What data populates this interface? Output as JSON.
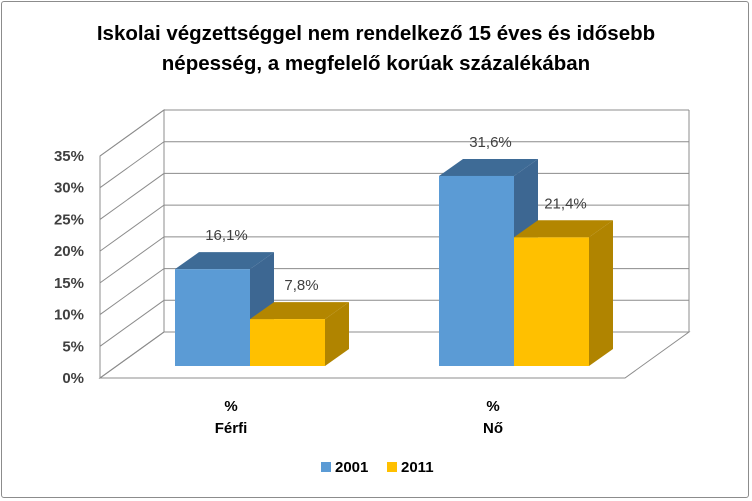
{
  "chart_data": {
    "type": "bar",
    "title_lines": [
      "Iskolai végzettséggel nem rendelkező 15 éves és idősebb",
      "népesség, a megfelelő korúak százalékában"
    ],
    "categories": [
      {
        "unit": "%",
        "name": "Férfi"
      },
      {
        "unit": "%",
        "name": "Nő"
      }
    ],
    "series": [
      {
        "name": "2001",
        "values": [
          16.1,
          31.6
        ],
        "labels": [
          "16,1%",
          "31,6%"
        ],
        "color": "#5b9bd5",
        "top_color": "#3e6b96",
        "side_color": "#3d6792"
      },
      {
        "name": "2011",
        "values": [
          7.8,
          21.4
        ],
        "labels": [
          "7,8%",
          "21,4%"
        ],
        "color": "#ffc000",
        "top_color": "#b38600",
        "side_color": "#b08400"
      }
    ],
    "yticks": [
      "0%",
      "5%",
      "10%",
      "15%",
      "20%",
      "25%",
      "30%",
      "35%"
    ],
    "ylim": [
      0,
      35
    ],
    "legend_position": "bottom",
    "grid": true,
    "three_d": true
  }
}
